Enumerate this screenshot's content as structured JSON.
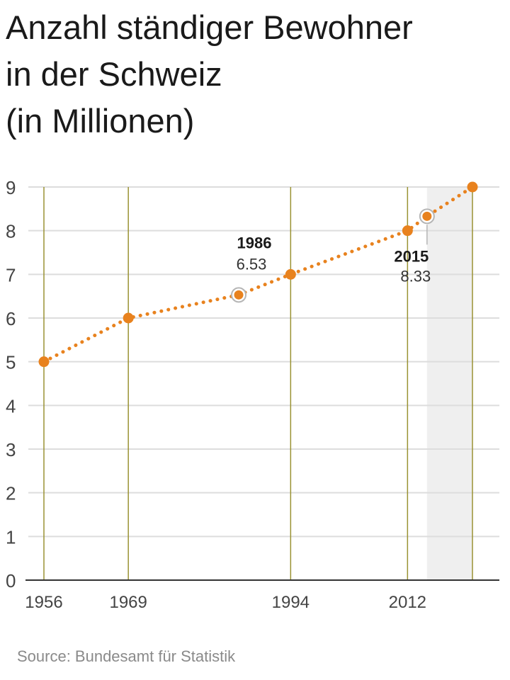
{
  "title_lines": [
    "Anzahl ständiger Bewohner",
    "in der Schweiz",
    "(in Millionen)"
  ],
  "source": "Source: Bundesamt für Statistik",
  "chart_data": {
    "type": "line",
    "x": [
      1956,
      1969,
      1986,
      1994,
      2012,
      2015,
      2022
    ],
    "y": [
      5,
      6,
      6.53,
      7,
      8,
      8.33,
      9
    ],
    "ylim": [
      0,
      9
    ],
    "xlim": [
      1956,
      2022
    ],
    "y_ticks": [
      0,
      1,
      2,
      3,
      4,
      5,
      6,
      7,
      8,
      9
    ],
    "x_ticks": [
      1956,
      1969,
      1994,
      2012
    ],
    "vertical_gridlines_at": [
      1956,
      1969,
      1994,
      2012,
      2022
    ],
    "shaded_range": [
      2015,
      2022
    ],
    "annotations": [
      {
        "x": 1986,
        "y": 6.53,
        "year_label": "1986",
        "value_label": "6.53",
        "position": "above"
      },
      {
        "x": 2015,
        "y": 8.33,
        "year_label": "2015",
        "value_label": "8.33",
        "position": "below"
      }
    ],
    "line_style": "dotted",
    "grid": true,
    "colors": {
      "line": "#e8821e",
      "vertical_grid": "#9a9233",
      "horizontal_grid": "#dddddd",
      "shade": "#efefef",
      "axis": "#333333"
    }
  }
}
